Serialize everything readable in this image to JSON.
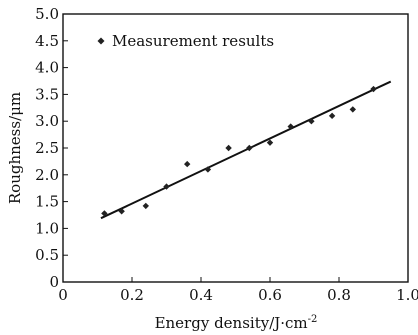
{
  "chart_data": {
    "type": "scatter",
    "title": "",
    "xlabel": "Energy density/J·cm",
    "xlabel_superscript": "-2",
    "ylabel": "Roughness/μm",
    "xlim": [
      0,
      1.0
    ],
    "ylim": [
      0,
      5.0
    ],
    "x_ticks": [
      "0",
      "0.2",
      "0.4",
      "0.6",
      "0.8",
      "1.0"
    ],
    "y_ticks": [
      "0",
      "0.5",
      "1.0",
      "1.5",
      "2.0",
      "2.5",
      "3.0",
      "3.5",
      "4.0",
      "4.5",
      "5.0"
    ],
    "grid": false,
    "legend_position": "top-left",
    "series": [
      {
        "name": "Measurement results",
        "marker": "diamond",
        "x": [
          0.12,
          0.17,
          0.24,
          0.3,
          0.36,
          0.42,
          0.48,
          0.54,
          0.6,
          0.66,
          0.72,
          0.78,
          0.84,
          0.9
        ],
        "y": [
          1.28,
          1.32,
          1.42,
          1.78,
          2.2,
          2.1,
          2.5,
          2.5,
          2.6,
          2.9,
          3.0,
          3.1,
          3.22,
          3.6
        ]
      }
    ],
    "fit_line": {
      "x": [
        0.11,
        0.95
      ],
      "y": [
        1.19,
        3.74
      ]
    },
    "colors": {
      "marker": "#222222",
      "line": "#111111",
      "axis": "#111111"
    }
  }
}
